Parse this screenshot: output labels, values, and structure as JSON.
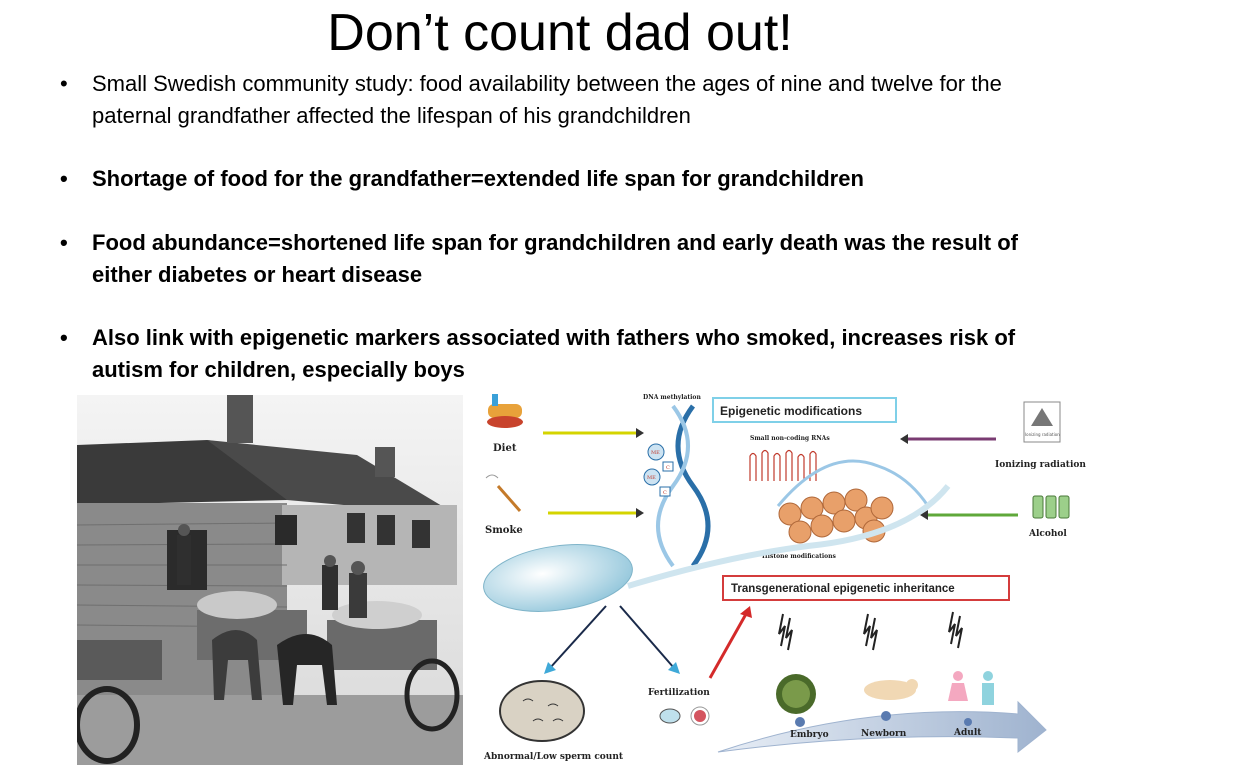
{
  "slide": {
    "title": "Don’t count dad out!",
    "bullets": [
      {
        "text": "Small Swedish community study: food availability between the ages of nine and twelve for the paternal grandfather affected the lifespan of his grandchildren",
        "bold": false
      },
      {
        "text": "Shortage of food for the grandfather=extended life span for grandchildren",
        "bold": true
      },
      {
        "text": "Food abundance=shortened life span for grandchildren and early death was the result of either diabetes or heart disease",
        "bold": true
      },
      {
        "text": "Also link with epigenetic markers associated with fathers who smoked, increases risk of autism for children, especially boys",
        "bold": true
      }
    ]
  },
  "diagram": {
    "dna_methylation": "DNA methylation",
    "epigenetic_modifications": "Epigenetic modifications",
    "small_rnas": "Small non-coding RNAs",
    "histone_modifications": "Histone modifications",
    "diet": "Diet",
    "smoke": "Smoke",
    "ionizing_radiation": "Ionizing radiation",
    "ionizing_sign": "Ionizing radiation",
    "alcohol": "Alcohol",
    "transgenerational": "Transgenerational epigenetic inheritance",
    "fertilization": "Fertilization",
    "abnormal_sperm": "Abnormal/Low sperm count",
    "embryo": "Embryo",
    "newborn": "Newborn",
    "adult": "Adult",
    "methyl_me": "ME",
    "methyl_c": "C"
  }
}
